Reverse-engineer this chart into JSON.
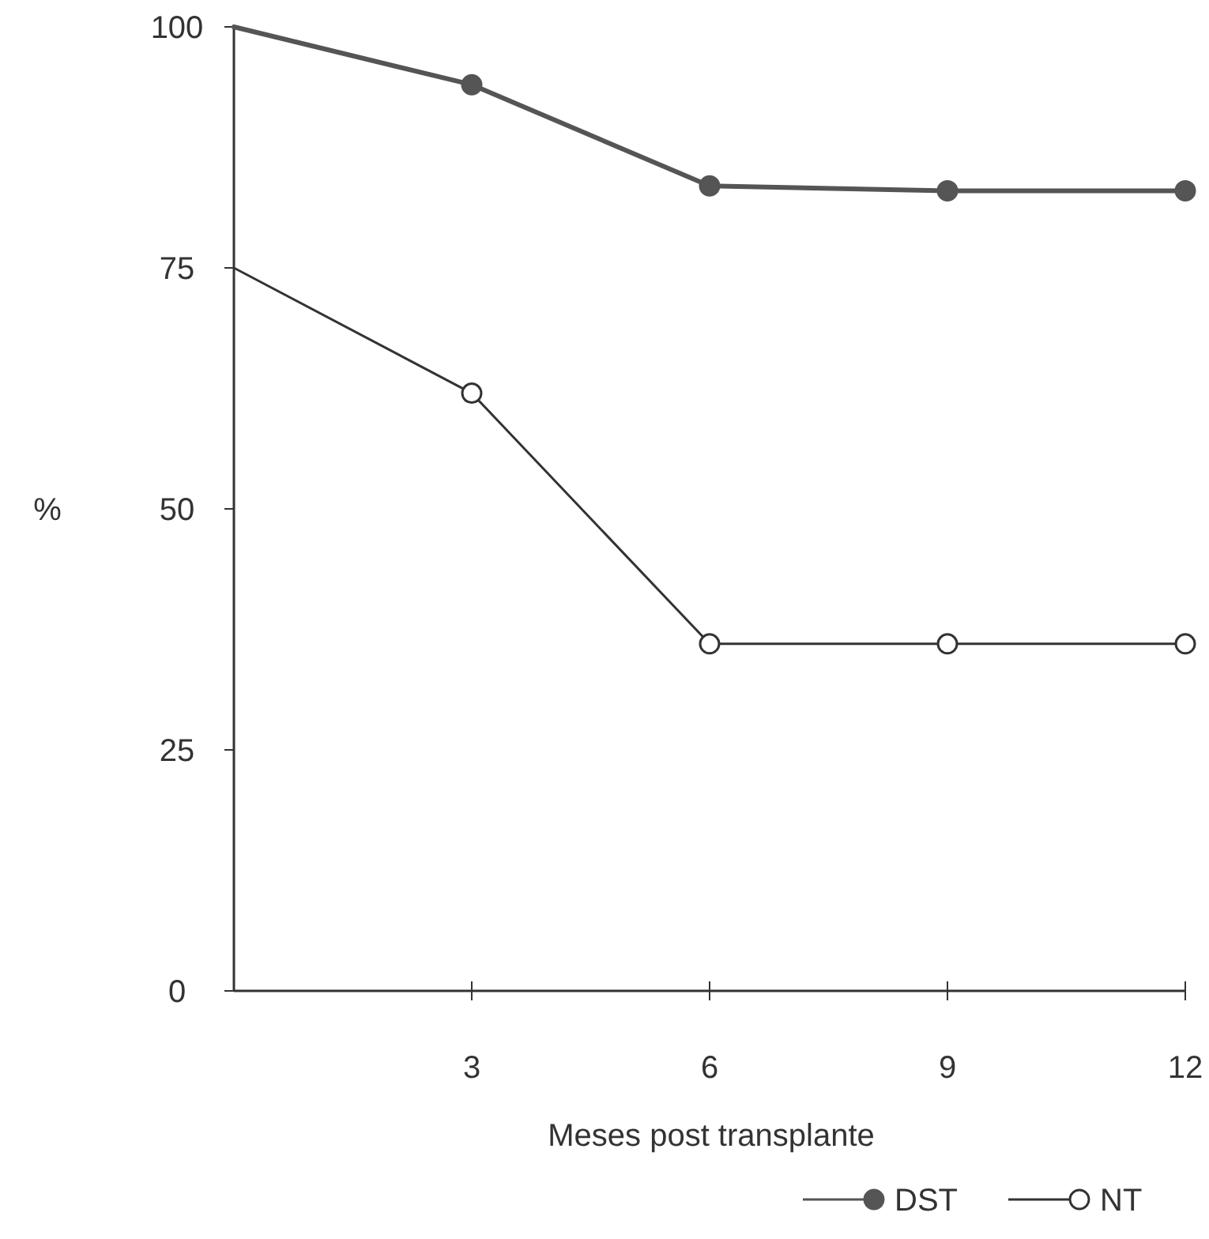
{
  "chart_data": {
    "type": "line",
    "xlabel": "Meses post transplante",
    "ylabel": "%",
    "x": [
      0,
      3,
      6,
      9,
      12
    ],
    "series": [
      {
        "name": "DST",
        "color": "#555555",
        "values": [
          100,
          94,
          83.5,
          83,
          83
        ]
      },
      {
        "name": "NT",
        "color": "#333333",
        "values": [
          75,
          62,
          36,
          36,
          36
        ]
      }
    ],
    "xlim": [
      0,
      12
    ],
    "xticks": [
      3,
      6,
      9,
      12
    ],
    "ylim": [
      0,
      100
    ],
    "yticks": [
      0,
      25,
      50,
      75,
      100
    ],
    "grid": false,
    "legend": "bottom",
    "marker": "circle",
    "line_style": "solid"
  }
}
